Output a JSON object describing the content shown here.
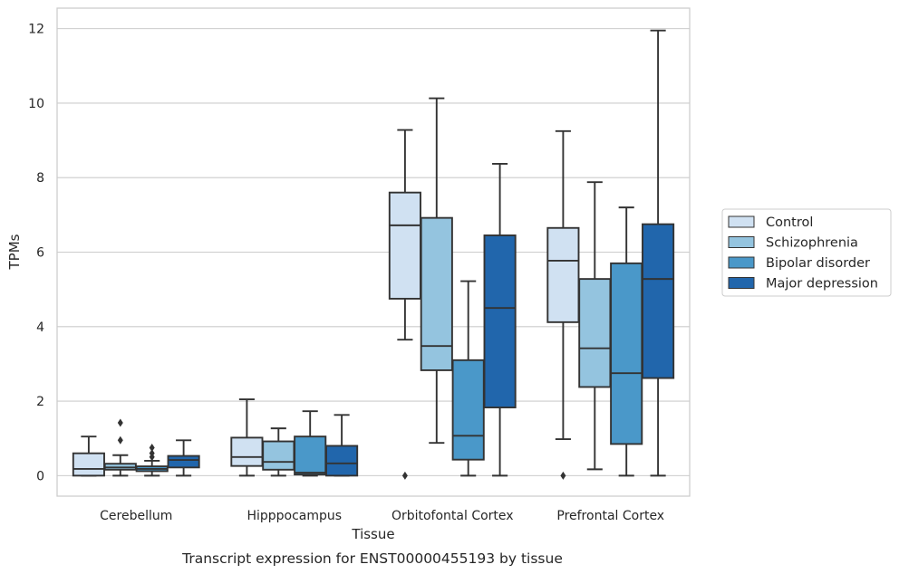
{
  "caption": "Transcript expression for ENST00000455193 by tissue",
  "chart_data": {
    "type": "box",
    "title": "",
    "xlabel": "Tissue",
    "ylabel": "TPMs",
    "ylim": [
      -0.55,
      12.55
    ],
    "yticks": [
      0,
      2,
      4,
      6,
      8,
      10,
      12
    ],
    "grid": "horizontal",
    "legend_position": "right",
    "categories": [
      "Cerebellum",
      "Hipppocampus",
      "Orbitofontal Cortex",
      "Prefrontal Cortex"
    ],
    "series": [
      {
        "name": "Control",
        "color": "#d0e1f2",
        "boxes": [
          {
            "whislo": 0,
            "q1": 0,
            "med": 0.18,
            "q3": 0.6,
            "whishi": 1.05,
            "fliers": []
          },
          {
            "whislo": 0,
            "q1": 0.26,
            "med": 0.5,
            "q3": 1.02,
            "whishi": 2.05,
            "fliers": []
          },
          {
            "whislo": 3.65,
            "q1": 4.75,
            "med": 6.72,
            "q3": 7.6,
            "whishi": 9.28,
            "fliers": [
              0
            ]
          },
          {
            "whislo": 0.98,
            "q1": 4.12,
            "med": 5.77,
            "q3": 6.65,
            "whishi": 9.25,
            "fliers": [
              0
            ]
          }
        ]
      },
      {
        "name": "Schizophrenia",
        "color": "#94c4df",
        "boxes": [
          {
            "whislo": 0,
            "q1": 0.16,
            "med": 0.22,
            "q3": 0.32,
            "whishi": 0.55,
            "fliers": [
              0.95,
              1.42
            ]
          },
          {
            "whislo": 0,
            "q1": 0.16,
            "med": 0.37,
            "q3": 0.92,
            "whishi": 1.27,
            "fliers": []
          },
          {
            "whislo": 0.88,
            "q1": 2.83,
            "med": 3.48,
            "q3": 6.92,
            "whishi": 10.13,
            "fliers": []
          },
          {
            "whislo": 0.17,
            "q1": 2.38,
            "med": 3.42,
            "q3": 5.28,
            "whishi": 7.88,
            "fliers": []
          }
        ]
      },
      {
        "name": "Bipolar disorder",
        "color": "#4a98c9",
        "boxes": [
          {
            "whislo": 0,
            "q1": 0.12,
            "med": 0.18,
            "q3": 0.25,
            "whishi": 0.4,
            "fliers": [
              0.5,
              0.6,
              0.75
            ]
          },
          {
            "whislo": 0,
            "q1": 0.03,
            "med": 0.08,
            "q3": 1.05,
            "whishi": 1.73,
            "fliers": []
          },
          {
            "whislo": 0,
            "q1": 0.43,
            "med": 1.07,
            "q3": 3.1,
            "whishi": 5.22,
            "fliers": []
          },
          {
            "whislo": 0,
            "q1": 0.85,
            "med": 2.75,
            "q3": 5.7,
            "whishi": 7.2,
            "fliers": []
          }
        ]
      },
      {
        "name": "Major depression",
        "color": "#2166ac",
        "boxes": [
          {
            "whislo": 0,
            "q1": 0.22,
            "med": 0.42,
            "q3": 0.53,
            "whishi": 0.95,
            "fliers": []
          },
          {
            "whislo": 0,
            "q1": 0,
            "med": 0.33,
            "q3": 0.8,
            "whishi": 1.63,
            "fliers": []
          },
          {
            "whislo": 0,
            "q1": 1.83,
            "med": 4.5,
            "q3": 6.45,
            "whishi": 8.37,
            "fliers": []
          },
          {
            "whislo": 0,
            "q1": 2.62,
            "med": 5.28,
            "q3": 6.75,
            "whishi": 11.95,
            "fliers": []
          }
        ]
      }
    ]
  }
}
